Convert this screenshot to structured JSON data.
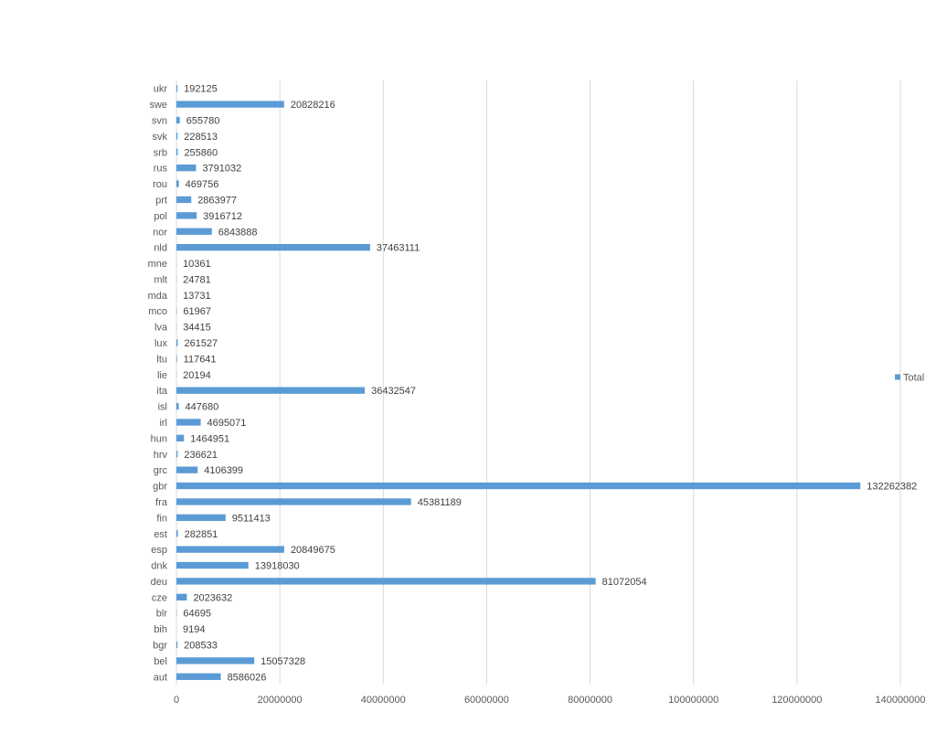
{
  "chart_data": {
    "type": "bar",
    "orientation": "horizontal",
    "title": "",
    "xlabel": "",
    "ylabel": "",
    "xlim": [
      0,
      140000000
    ],
    "xticks": [
      0,
      20000000,
      40000000,
      60000000,
      80000000,
      100000000,
      120000000,
      140000000
    ],
    "xtick_labels": [
      "0",
      "20000000",
      "40000000",
      "60000000",
      "80000000",
      "100000000",
      "120000000",
      "140000000"
    ],
    "grid": true,
    "legend_position": "right",
    "bar_color": "#5b9bd5",
    "categories": [
      "aut",
      "bel",
      "bgr",
      "bih",
      "blr",
      "cze",
      "deu",
      "dnk",
      "esp",
      "est",
      "fin",
      "fra",
      "gbr",
      "grc",
      "hrv",
      "hun",
      "irl",
      "isl",
      "ita",
      "lie",
      "ltu",
      "lux",
      "lva",
      "mco",
      "mda",
      "mlt",
      "mne",
      "nld",
      "nor",
      "pol",
      "prt",
      "rou",
      "rus",
      "srb",
      "svk",
      "svn",
      "swe",
      "ukr"
    ],
    "series": [
      {
        "name": "Total",
        "values": [
          8586026,
          15057328,
          208533,
          9194,
          64695,
          2023632,
          81072054,
          13918030,
          20849675,
          282851,
          9511413,
          45381189,
          132262382,
          4106399,
          236621,
          1464951,
          4695071,
          447680,
          36432547,
          20194,
          117641,
          261527,
          34415,
          61967,
          13731,
          24781,
          10361,
          37463111,
          6843888,
          3916712,
          2863977,
          469756,
          3791032,
          255860,
          228513,
          655780,
          20828216,
          192125
        ],
        "value_labels": [
          "8586026",
          "15057328",
          "208533",
          "9194",
          "64695",
          "2023632",
          "81072054",
          "13918030",
          "20849675",
          "282851",
          "9511413",
          "45381189",
          "132262382",
          "4106399",
          "236621",
          "1464951",
          "4695071",
          "447680",
          "36432547",
          "20194",
          "117641",
          "261527",
          "34415",
          "61967",
          "13731",
          "24781",
          "10361",
          "37463111",
          "6843888",
          "3916712",
          "2863977",
          "469756",
          "3791032",
          "255860",
          "228513",
          "655780",
          "20828216",
          "192125"
        ]
      }
    ]
  }
}
